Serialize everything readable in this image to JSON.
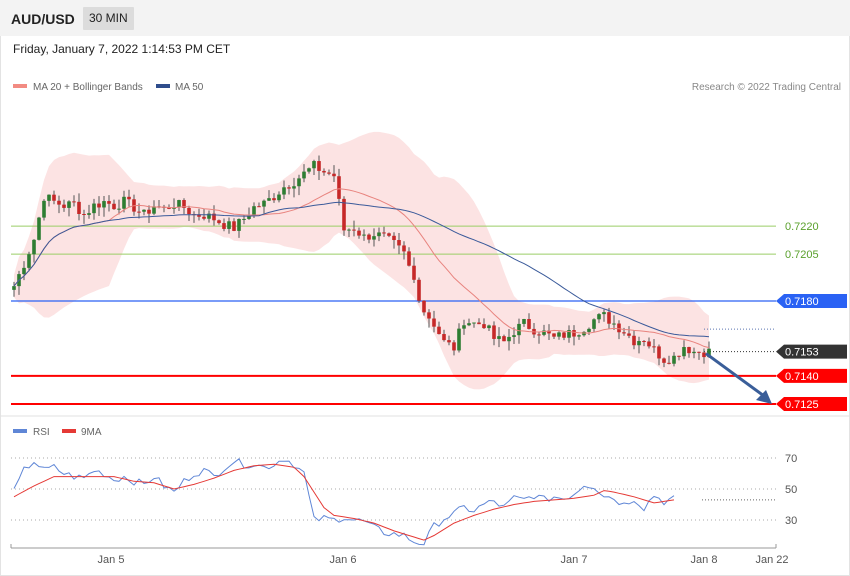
{
  "header": {
    "symbol": "AUD/USD",
    "timeframe": "30 MIN",
    "timestamp": "Friday, January 7, 2022 1:14:53 PM CET"
  },
  "legend": {
    "ma20": "MA 20 + Bollinger Bands",
    "ma50": "MA 50",
    "credit": "Research © 2022 Trading Central"
  },
  "rsi_legend": {
    "rsi": "RSI",
    "ma9": "9MA"
  },
  "colors": {
    "up": "#2e7d32",
    "down": "#c62828",
    "ma20": "#e8837e",
    "ma50": "#3a5a9a",
    "band": "#fbd9d9",
    "level_green": "#9acd66",
    "level_blue": "#2a62f4",
    "level_red": "#ff0000",
    "last_price": "#333333",
    "rsi": "#5f86d6",
    "rsi_ma": "#e53935",
    "arrow": "#3a5e99"
  },
  "chart_data": [
    {
      "type": "candlestick",
      "title": "AUD/USD 30 MIN",
      "x_ticks": [
        "Jan 5",
        "Jan 6",
        "Jan 7",
        "Jan 8",
        "Jan 22"
      ],
      "ylim": [
        0.7117,
        0.726
      ],
      "levels": [
        {
          "value": 0.722,
          "label": "0.7220",
          "style": "green"
        },
        {
          "value": 0.7205,
          "label": "0.7205",
          "style": "green"
        },
        {
          "value": 0.718,
          "label": "0.7180",
          "style": "blue"
        },
        {
          "value": 0.7153,
          "label": "0.7153",
          "style": "last"
        },
        {
          "value": 0.714,
          "label": "0.7140",
          "style": "red"
        },
        {
          "value": 0.7125,
          "label": "0.7125",
          "style": "red"
        }
      ],
      "arrow": {
        "from": 0.7153,
        "to": 0.7125,
        "direction": "down"
      },
      "ma20_label": "MA 20 + Bollinger Bands",
      "ma50_label": "MA 50",
      "close_path": [
        [
          0,
          0.7188
        ],
        [
          2,
          0.72
        ],
        [
          4,
          0.7213
        ],
        [
          6,
          0.7236
        ],
        [
          8,
          0.7233
        ],
        [
          10,
          0.7231
        ],
        [
          12,
          0.7232
        ],
        [
          14,
          0.7226
        ],
        [
          16,
          0.7231
        ],
        [
          18,
          0.7233
        ],
        [
          20,
          0.7231
        ],
        [
          22,
          0.7233
        ],
        [
          24,
          0.723
        ],
        [
          26,
          0.7226
        ],
        [
          28,
          0.7231
        ],
        [
          30,
          0.7229
        ],
        [
          32,
          0.7232
        ],
        [
          34,
          0.723
        ],
        [
          36,
          0.7226
        ],
        [
          38,
          0.7226
        ],
        [
          40,
          0.7224
        ],
        [
          42,
          0.7221
        ],
        [
          44,
          0.7219
        ],
        [
          46,
          0.7224
        ],
        [
          48,
          0.723
        ],
        [
          50,
          0.7232
        ],
        [
          52,
          0.7236
        ],
        [
          54,
          0.7241
        ],
        [
          56,
          0.7244
        ],
        [
          58,
          0.7248
        ],
        [
          60,
          0.7252
        ],
        [
          62,
          0.7249
        ],
        [
          64,
          0.7247
        ],
        [
          66,
          0.7218
        ],
        [
          68,
          0.7219
        ],
        [
          70,
          0.7214
        ],
        [
          72,
          0.7216
        ],
        [
          74,
          0.7214
        ],
        [
          76,
          0.721
        ],
        [
          78,
          0.7205
        ],
        [
          80,
          0.7191
        ],
        [
          82,
          0.7175
        ],
        [
          84,
          0.7168
        ],
        [
          86,
          0.7158
        ],
        [
          88,
          0.7155
        ],
        [
          90,
          0.717
        ],
        [
          92,
          0.7168
        ],
        [
          94,
          0.7168
        ],
        [
          96,
          0.716
        ],
        [
          98,
          0.7158
        ],
        [
          100,
          0.7164
        ],
        [
          102,
          0.7168
        ],
        [
          104,
          0.7165
        ],
        [
          106,
          0.7163
        ],
        [
          108,
          0.716
        ],
        [
          110,
          0.7162
        ],
        [
          112,
          0.7163
        ],
        [
          114,
          0.7166
        ],
        [
          116,
          0.717
        ],
        [
          118,
          0.7172
        ],
        [
          120,
          0.7168
        ],
        [
          122,
          0.7164
        ],
        [
          124,
          0.7159
        ],
        [
          126,
          0.716
        ],
        [
          128,
          0.7154
        ],
        [
          130,
          0.7149
        ],
        [
          132,
          0.715
        ],
        [
          134,
          0.7156
        ],
        [
          136,
          0.7153
        ],
        [
          138,
          0.7153
        ]
      ]
    },
    {
      "type": "line",
      "title": "RSI",
      "series": [
        {
          "name": "RSI",
          "values": [
            [
              0,
              48
            ],
            [
              2,
              62
            ],
            [
              4,
              68
            ],
            [
              6,
              62
            ],
            [
              8,
              64
            ],
            [
              10,
              60
            ],
            [
              12,
              58
            ],
            [
              14,
              57
            ],
            [
              16,
              62
            ],
            [
              18,
              60
            ],
            [
              20,
              56
            ],
            [
              22,
              58
            ],
            [
              24,
              55
            ],
            [
              26,
              53
            ],
            [
              28,
              58
            ],
            [
              30,
              52
            ],
            [
              32,
              48
            ],
            [
              34,
              55
            ],
            [
              36,
              60
            ],
            [
              38,
              62
            ],
            [
              40,
              58
            ],
            [
              42,
              64
            ],
            [
              44,
              68
            ],
            [
              46,
              66
            ],
            [
              48,
              66
            ],
            [
              50,
              64
            ],
            [
              52,
              66
            ],
            [
              54,
              70
            ],
            [
              56,
              66
            ],
            [
              58,
              60
            ],
            [
              60,
              30
            ],
            [
              62,
              31
            ],
            [
              64,
              30
            ],
            [
              66,
              32
            ],
            [
              68,
              30
            ],
            [
              70,
              29
            ],
            [
              72,
              25
            ],
            [
              74,
              22
            ],
            [
              76,
              21
            ],
            [
              78,
              20
            ],
            [
              80,
              16
            ],
            [
              82,
              15
            ],
            [
              84,
              26
            ],
            [
              86,
              31
            ],
            [
              88,
              34
            ],
            [
              90,
              38
            ],
            [
              92,
              36
            ],
            [
              94,
              40
            ],
            [
              96,
              42
            ],
            [
              98,
              38
            ],
            [
              100,
              44
            ],
            [
              102,
              43
            ],
            [
              104,
              46
            ],
            [
              106,
              43
            ],
            [
              108,
              45
            ],
            [
              110,
              44
            ],
            [
              112,
              47
            ],
            [
              114,
              53
            ],
            [
              116,
              52
            ],
            [
              118,
              46
            ],
            [
              120,
              44
            ],
            [
              122,
              40
            ],
            [
              124,
              44
            ],
            [
              126,
              38
            ],
            [
              128,
              46
            ],
            [
              130,
              42
            ],
            [
              132,
              44
            ]
          ]
        },
        {
          "name": "9MA",
          "values": [
            [
              0,
              45
            ],
            [
              4,
              52
            ],
            [
              8,
              58
            ],
            [
              12,
              58
            ],
            [
              16,
              58
            ],
            [
              20,
              58
            ],
            [
              24,
              55
            ],
            [
              28,
              54
            ],
            [
              32,
              50
            ],
            [
              36,
              53
            ],
            [
              40,
              57
            ],
            [
              44,
              62
            ],
            [
              48,
              65
            ],
            [
              52,
              66
            ],
            [
              56,
              64
            ],
            [
              58,
              58
            ],
            [
              60,
              48
            ],
            [
              62,
              38
            ],
            [
              64,
              33
            ],
            [
              68,
              31
            ],
            [
              72,
              28
            ],
            [
              76,
              23
            ],
            [
              80,
              19
            ],
            [
              82,
              17
            ],
            [
              84,
              20
            ],
            [
              88,
              28
            ],
            [
              92,
              33
            ],
            [
              96,
              37
            ],
            [
              100,
              40
            ],
            [
              104,
              42
            ],
            [
              108,
              43
            ],
            [
              112,
              44
            ],
            [
              116,
              46
            ],
            [
              118,
              49
            ],
            [
              120,
              48
            ],
            [
              124,
              45
            ],
            [
              128,
              41
            ],
            [
              132,
              43
            ]
          ]
        }
      ],
      "y_ticks": [
        "70",
        "50",
        "30"
      ],
      "ylim": [
        12,
        74
      ]
    }
  ]
}
